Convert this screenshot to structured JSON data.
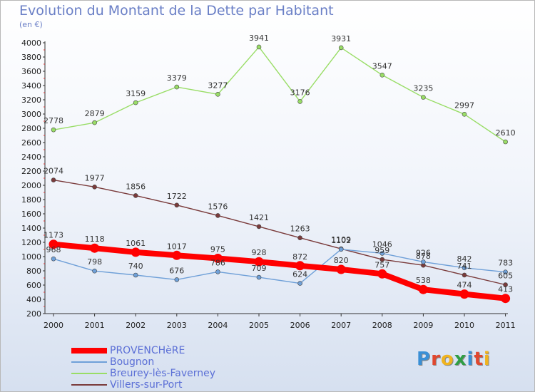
{
  "header": {
    "title": "Evolution du Montant de la Dette par Habitant",
    "subtitle": "(en €)"
  },
  "logo": {
    "text": "Proxiti",
    "letter_colors": [
      "#3a8fd6",
      "#e0472f",
      "#f0b31f",
      "#2f9e44",
      "#3a8fd6",
      "#e0472f",
      "#f0b31f"
    ]
  },
  "chart_data": {
    "type": "line",
    "title": "Evolution du Montant de la Dette par Habitant",
    "subtitle": "(en €)",
    "xlabel": "",
    "ylabel": "",
    "x": [
      "2000",
      "2001",
      "2002",
      "2003",
      "2004",
      "2005",
      "2006",
      "2007",
      "2008",
      "2009",
      "2010",
      "2011"
    ],
    "ylim": [
      200,
      4000
    ],
    "yticks": [
      200,
      400,
      600,
      800,
      1000,
      1200,
      1400,
      1600,
      1800,
      2000,
      2200,
      2400,
      2600,
      2800,
      3000,
      3200,
      3400,
      3600,
      3800,
      4000
    ],
    "grid": false,
    "legend": "bottom-left",
    "series": [
      {
        "name": "PROVENCHèRE",
        "color": "#ff0000",
        "values": [
          1173,
          1118,
          1061,
          1017,
          975,
          928,
          872,
          820,
          757,
          538,
          474,
          413
        ],
        "labels": [
          "1173",
          "1118",
          "1061",
          "1017",
          "975",
          "928",
          "872",
          "820",
          "757",
          "538",
          "474",
          "413"
        ]
      },
      {
        "name": "Bougnon",
        "color": "#6fa0d8",
        "values": [
          968,
          798,
          740,
          676,
          786,
          709,
          624,
          1102,
          1046,
          926,
          842,
          783
        ],
        "labels": [
          "968",
          "798",
          "740",
          "676",
          "786",
          "709",
          "624",
          "1102",
          "1046",
          "926",
          "842",
          "783"
        ]
      },
      {
        "name": "Breurey-lès-Faverney",
        "color": "#99dd66",
        "values": [
          2778,
          2879,
          3159,
          3379,
          3277,
          3941,
          3176,
          3931,
          3547,
          3235,
          2997,
          2610
        ],
        "labels": [
          "2778",
          "2879",
          "3159",
          "3379",
          "3277",
          "3941",
          "3176",
          "3931",
          "3547",
          "3235",
          "2997",
          "2610"
        ]
      },
      {
        "name": "Villers-sur-Port",
        "color": "#7a3b3b",
        "values": [
          2074,
          1977,
          1856,
          1722,
          1576,
          1421,
          1263,
          1109,
          959,
          878,
          741,
          605
        ],
        "labels": [
          "2074",
          "1977",
          "1856",
          "1722",
          "1576",
          "1421",
          "1263",
          "1109",
          "959",
          "878",
          "741",
          "605"
        ]
      }
    ]
  }
}
